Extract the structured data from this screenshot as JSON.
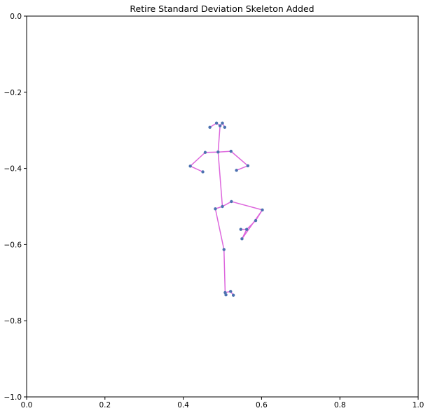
{
  "chart_data": {
    "type": "scatter",
    "title": "Retire Standard Deviation Skeleton Added",
    "xlabel": "",
    "ylabel": "",
    "xlim": [
      0.0,
      1.0
    ],
    "ylim": [
      -1.0,
      0.0
    ],
    "grid": false,
    "x_ticks": [
      "0.0",
      "0.2",
      "0.4",
      "0.6",
      "0.8",
      "1.0"
    ],
    "y_ticks": [
      "0.0",
      "−0.2",
      "−0.4",
      "−0.6",
      "−0.8",
      "−1.0"
    ],
    "x_tick_values": [
      0.0,
      0.2,
      0.4,
      0.6,
      0.8,
      1.0
    ],
    "y_tick_values": [
      0.0,
      -0.2,
      -0.4,
      -0.6,
      -0.8,
      -1.0
    ],
    "point_color": "#4c72b0",
    "line_color": "#dd66dd",
    "points": [
      {
        "x": 0.494,
        "y": -0.288
      },
      {
        "x": 0.485,
        "y": -0.281
      },
      {
        "x": 0.468,
        "y": -0.292
      },
      {
        "x": 0.5,
        "y": -0.281
      },
      {
        "x": 0.506,
        "y": -0.292
      },
      {
        "x": 0.489,
        "y": -0.357
      },
      {
        "x": 0.456,
        "y": -0.358
      },
      {
        "x": 0.522,
        "y": -0.355
      },
      {
        "x": 0.418,
        "y": -0.394
      },
      {
        "x": 0.565,
        "y": -0.393
      },
      {
        "x": 0.45,
        "y": -0.409
      },
      {
        "x": 0.536,
        "y": -0.405
      },
      {
        "x": 0.5,
        "y": -0.5
      },
      {
        "x": 0.482,
        "y": -0.506
      },
      {
        "x": 0.523,
        "y": -0.487
      },
      {
        "x": 0.602,
        "y": -0.509
      },
      {
        "x": 0.504,
        "y": -0.613
      },
      {
        "x": 0.585,
        "y": -0.537
      },
      {
        "x": 0.562,
        "y": -0.56
      },
      {
        "x": 0.547,
        "y": -0.56
      },
      {
        "x": 0.55,
        "y": -0.585
      },
      {
        "x": 0.507,
        "y": -0.726
      },
      {
        "x": 0.521,
        "y": -0.723
      },
      {
        "x": 0.509,
        "y": -0.732
      },
      {
        "x": 0.528,
        "y": -0.733
      }
    ],
    "edges": [
      [
        0,
        1
      ],
      [
        1,
        2
      ],
      [
        0,
        3
      ],
      [
        3,
        4
      ],
      [
        0,
        5
      ],
      [
        5,
        6
      ],
      [
        6,
        8
      ],
      [
        8,
        10
      ],
      [
        5,
        7
      ],
      [
        7,
        9
      ],
      [
        9,
        11
      ],
      [
        5,
        12
      ],
      [
        12,
        13
      ],
      [
        13,
        16
      ],
      [
        16,
        21
      ],
      [
        21,
        22
      ],
      [
        22,
        24
      ],
      [
        21,
        23
      ],
      [
        12,
        14
      ],
      [
        14,
        15
      ],
      [
        15,
        17
      ],
      [
        17,
        18
      ],
      [
        18,
        19
      ],
      [
        18,
        20
      ],
      [
        15,
        20
      ]
    ]
  }
}
